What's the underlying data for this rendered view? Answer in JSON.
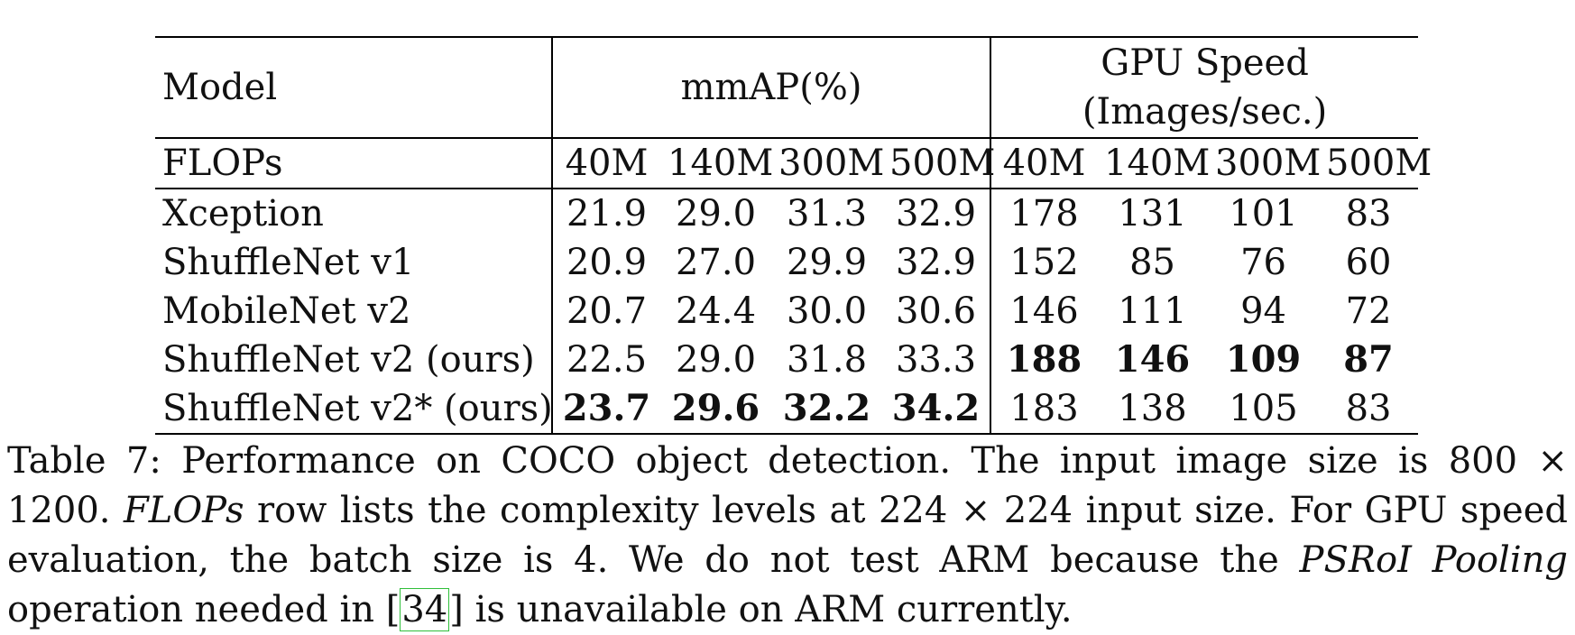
{
  "table": {
    "header": {
      "model_label": "Model",
      "mmap_label": "mmAP(%)",
      "gpu_label_line1": "GPU Speed",
      "gpu_label_line2": "(Images/sec.)"
    },
    "flops_row": {
      "label": "FLOPs",
      "mmap_cols": [
        "40M",
        "140M",
        "300M",
        "500M"
      ],
      "gpu_cols": [
        "40M",
        "140M",
        "300M",
        "500M"
      ]
    },
    "rows": [
      {
        "model": "Xception",
        "mmap": [
          "21.9",
          "29.0",
          "31.3",
          "32.9"
        ],
        "gpu": [
          "178",
          "131",
          "101",
          "83"
        ]
      },
      {
        "model": "ShuffleNet v1",
        "mmap": [
          "20.9",
          "27.0",
          "29.9",
          "32.9"
        ],
        "gpu": [
          "152",
          "85",
          "76",
          "60"
        ]
      },
      {
        "model": "MobileNet v2",
        "mmap": [
          "20.7",
          "24.4",
          "30.0",
          "30.6"
        ],
        "gpu": [
          "146",
          "111",
          "94",
          "72"
        ]
      },
      {
        "model": "ShuffleNet v2 (ours)",
        "mmap": [
          "22.5",
          "29.0",
          "31.8",
          "33.3"
        ],
        "gpu": [
          "188",
          "146",
          "109",
          "87"
        ]
      },
      {
        "model": "ShuffleNet v2* (ours)",
        "mmap": [
          "23.7",
          "29.6",
          "32.2",
          "34.2"
        ],
        "gpu": [
          "183",
          "138",
          "105",
          "83"
        ]
      }
    ]
  },
  "caption": {
    "label": "Table 7:",
    "s1": " Performance on COCO object detection. The input image size is 800 × 1200. ",
    "flops_italic": "FLOPs",
    "s2": " row lists the complexity levels at 224 × 224 input size. For GPU speed evaluation, the batch size is 4. We do not test ARM because the ",
    "psroi_italic": "PSRoI Pooling",
    "s3": " operation needed in ",
    "cite_open": "[",
    "cite_num": "34",
    "cite_close": "]",
    "s4": " is unavailable on ARM currently."
  }
}
